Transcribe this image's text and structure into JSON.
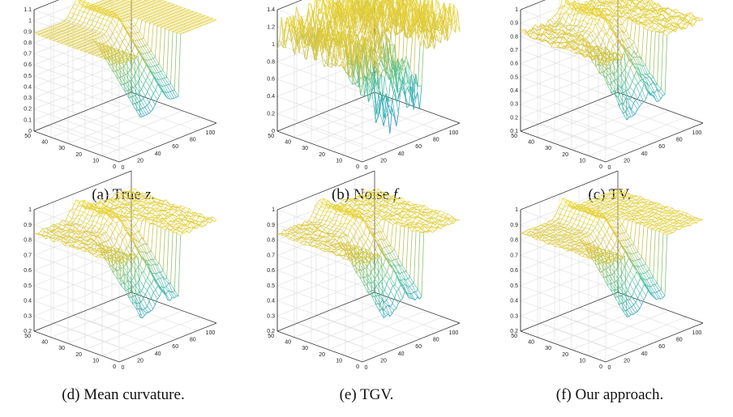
{
  "colors": {
    "low": "#3a3fb0",
    "mid1": "#2aa1c8",
    "mid2": "#54c49a",
    "high1": "#d4c246",
    "high2": "#f2dd33",
    "axis": "#333333",
    "grid": "#dddddd"
  },
  "panels": [
    {
      "id": "a",
      "label": "(a)",
      "caption": "True",
      "var": "z",
      "suffix": ".",
      "zticks": [
        "1.1",
        "1",
        "0.9",
        "0.8",
        "0.7",
        "0.6",
        "0.5",
        "0.4",
        "0.3",
        "0.2",
        "0.1",
        "0"
      ],
      "yticks": [
        "0",
        "10",
        "20",
        "30",
        "40",
        "50"
      ],
      "xticks": [
        "0",
        "20",
        "40",
        "60",
        "80",
        "100"
      ],
      "noise": 0.0
    },
    {
      "id": "b",
      "label": "(b)",
      "caption": "Noise",
      "var": "f",
      "suffix": ".",
      "zticks": [
        "1.4",
        "1.2",
        "1",
        "0.8",
        "0.6",
        "0.4",
        "0.2",
        "0"
      ],
      "yticks": [
        "0",
        "10",
        "20",
        "30",
        "40",
        "50"
      ],
      "xticks": [
        "0",
        "20",
        "40",
        "60",
        "80",
        "100"
      ],
      "noise": 1.0
    },
    {
      "id": "c",
      "label": "(c)",
      "caption": "TV.",
      "var": "",
      "suffix": "",
      "zticks": [
        "1",
        "0.9",
        "0.8",
        "0.7",
        "0.6",
        "0.5",
        "0.4",
        "0.3",
        "0.2",
        "0.1"
      ],
      "yticks": [
        "0",
        "10",
        "20",
        "30",
        "40",
        "50"
      ],
      "xticks": [
        "0",
        "20",
        "40",
        "60",
        "80",
        "100"
      ],
      "noise": 0.15
    },
    {
      "id": "d",
      "label": "(d)",
      "caption": "Mean curvature.",
      "var": "",
      "suffix": "",
      "zticks": [
        "1",
        "0.9",
        "0.8",
        "0.7",
        "0.6",
        "0.5",
        "0.4",
        "0.3",
        "0.2"
      ],
      "yticks": [
        "0",
        "10",
        "20",
        "30",
        "40",
        "50"
      ],
      "xticks": [
        "0",
        "20",
        "40",
        "60",
        "80",
        "100"
      ],
      "noise": 0.1
    },
    {
      "id": "e",
      "label": "(e)",
      "caption": "TGV.",
      "var": "",
      "suffix": "",
      "zticks": [
        "1",
        "0.9",
        "0.8",
        "0.7",
        "0.6",
        "0.5",
        "0.4",
        "0.3",
        "0.2"
      ],
      "yticks": [
        "0",
        "10",
        "20",
        "30",
        "40",
        "50"
      ],
      "xticks": [
        "0",
        "20",
        "40",
        "60",
        "80",
        "100"
      ],
      "noise": 0.1
    },
    {
      "id": "f",
      "label": "(f)",
      "caption": "Our approach.",
      "var": "",
      "suffix": "",
      "zticks": [
        "1",
        "0.9",
        "0.8",
        "0.7",
        "0.6",
        "0.5",
        "0.4",
        "0.3",
        "0.2"
      ],
      "yticks": [
        "0",
        "10",
        "20",
        "30",
        "40",
        "50"
      ],
      "xticks": [
        "0",
        "20",
        "40",
        "60",
        "80",
        "100"
      ],
      "noise": 0.05
    }
  ]
}
